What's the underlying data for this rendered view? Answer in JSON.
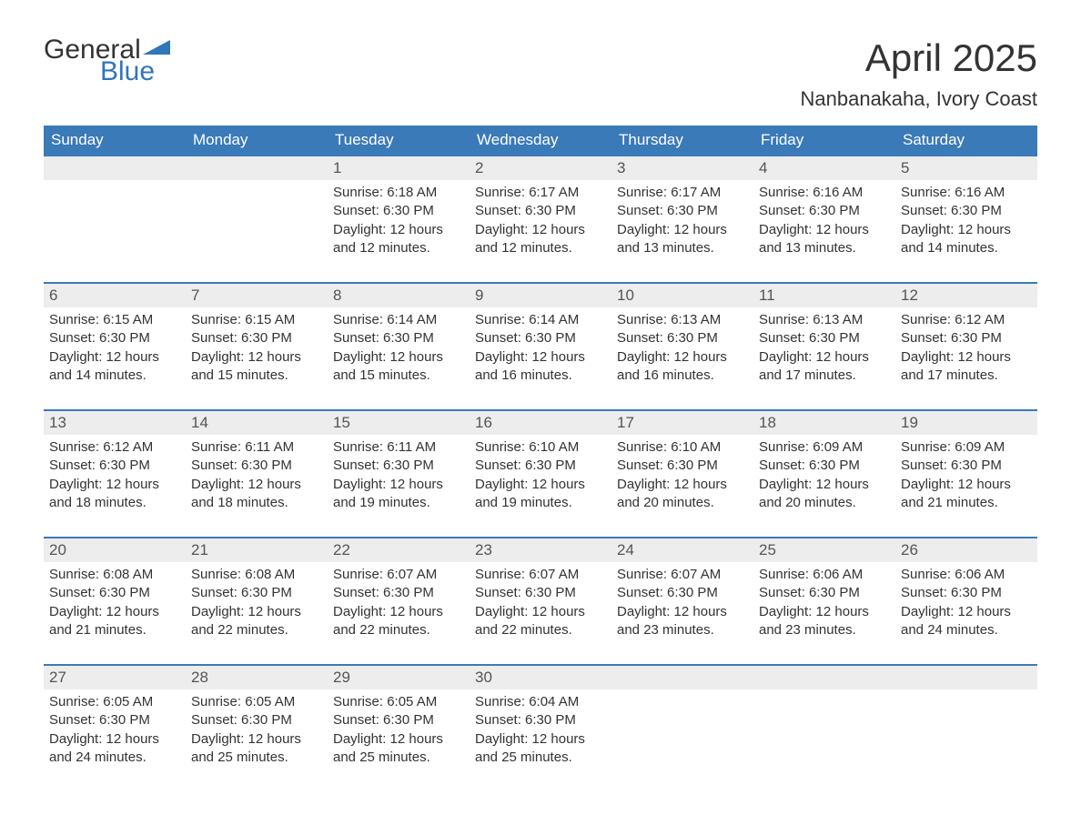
{
  "logo": {
    "text_general": "General",
    "text_blue": "Blue"
  },
  "title": "April 2025",
  "location": "Nanbanakaha, Ivory Coast",
  "colors": {
    "accent": "#3a7ab8",
    "header_bg": "#3a7ab8",
    "header_text": "#ffffff",
    "daynum_bg": "#ededed",
    "text": "#333333",
    "logo_blue": "#2f76ba",
    "background": "#ffffff"
  },
  "weekdays": [
    "Sunday",
    "Monday",
    "Tuesday",
    "Wednesday",
    "Thursday",
    "Friday",
    "Saturday"
  ],
  "weeks": [
    [
      null,
      null,
      {
        "d": "1",
        "sr": "Sunrise: 6:18 AM",
        "ss": "Sunset: 6:30 PM",
        "dl1": "Daylight: 12 hours",
        "dl2": "and 12 minutes."
      },
      {
        "d": "2",
        "sr": "Sunrise: 6:17 AM",
        "ss": "Sunset: 6:30 PM",
        "dl1": "Daylight: 12 hours",
        "dl2": "and 12 minutes."
      },
      {
        "d": "3",
        "sr": "Sunrise: 6:17 AM",
        "ss": "Sunset: 6:30 PM",
        "dl1": "Daylight: 12 hours",
        "dl2": "and 13 minutes."
      },
      {
        "d": "4",
        "sr": "Sunrise: 6:16 AM",
        "ss": "Sunset: 6:30 PM",
        "dl1": "Daylight: 12 hours",
        "dl2": "and 13 minutes."
      },
      {
        "d": "5",
        "sr": "Sunrise: 6:16 AM",
        "ss": "Sunset: 6:30 PM",
        "dl1": "Daylight: 12 hours",
        "dl2": "and 14 minutes."
      }
    ],
    [
      {
        "d": "6",
        "sr": "Sunrise: 6:15 AM",
        "ss": "Sunset: 6:30 PM",
        "dl1": "Daylight: 12 hours",
        "dl2": "and 14 minutes."
      },
      {
        "d": "7",
        "sr": "Sunrise: 6:15 AM",
        "ss": "Sunset: 6:30 PM",
        "dl1": "Daylight: 12 hours",
        "dl2": "and 15 minutes."
      },
      {
        "d": "8",
        "sr": "Sunrise: 6:14 AM",
        "ss": "Sunset: 6:30 PM",
        "dl1": "Daylight: 12 hours",
        "dl2": "and 15 minutes."
      },
      {
        "d": "9",
        "sr": "Sunrise: 6:14 AM",
        "ss": "Sunset: 6:30 PM",
        "dl1": "Daylight: 12 hours",
        "dl2": "and 16 minutes."
      },
      {
        "d": "10",
        "sr": "Sunrise: 6:13 AM",
        "ss": "Sunset: 6:30 PM",
        "dl1": "Daylight: 12 hours",
        "dl2": "and 16 minutes."
      },
      {
        "d": "11",
        "sr": "Sunrise: 6:13 AM",
        "ss": "Sunset: 6:30 PM",
        "dl1": "Daylight: 12 hours",
        "dl2": "and 17 minutes."
      },
      {
        "d": "12",
        "sr": "Sunrise: 6:12 AM",
        "ss": "Sunset: 6:30 PM",
        "dl1": "Daylight: 12 hours",
        "dl2": "and 17 minutes."
      }
    ],
    [
      {
        "d": "13",
        "sr": "Sunrise: 6:12 AM",
        "ss": "Sunset: 6:30 PM",
        "dl1": "Daylight: 12 hours",
        "dl2": "and 18 minutes."
      },
      {
        "d": "14",
        "sr": "Sunrise: 6:11 AM",
        "ss": "Sunset: 6:30 PM",
        "dl1": "Daylight: 12 hours",
        "dl2": "and 18 minutes."
      },
      {
        "d": "15",
        "sr": "Sunrise: 6:11 AM",
        "ss": "Sunset: 6:30 PM",
        "dl1": "Daylight: 12 hours",
        "dl2": "and 19 minutes."
      },
      {
        "d": "16",
        "sr": "Sunrise: 6:10 AM",
        "ss": "Sunset: 6:30 PM",
        "dl1": "Daylight: 12 hours",
        "dl2": "and 19 minutes."
      },
      {
        "d": "17",
        "sr": "Sunrise: 6:10 AM",
        "ss": "Sunset: 6:30 PM",
        "dl1": "Daylight: 12 hours",
        "dl2": "and 20 minutes."
      },
      {
        "d": "18",
        "sr": "Sunrise: 6:09 AM",
        "ss": "Sunset: 6:30 PM",
        "dl1": "Daylight: 12 hours",
        "dl2": "and 20 minutes."
      },
      {
        "d": "19",
        "sr": "Sunrise: 6:09 AM",
        "ss": "Sunset: 6:30 PM",
        "dl1": "Daylight: 12 hours",
        "dl2": "and 21 minutes."
      }
    ],
    [
      {
        "d": "20",
        "sr": "Sunrise: 6:08 AM",
        "ss": "Sunset: 6:30 PM",
        "dl1": "Daylight: 12 hours",
        "dl2": "and 21 minutes."
      },
      {
        "d": "21",
        "sr": "Sunrise: 6:08 AM",
        "ss": "Sunset: 6:30 PM",
        "dl1": "Daylight: 12 hours",
        "dl2": "and 22 minutes."
      },
      {
        "d": "22",
        "sr": "Sunrise: 6:07 AM",
        "ss": "Sunset: 6:30 PM",
        "dl1": "Daylight: 12 hours",
        "dl2": "and 22 minutes."
      },
      {
        "d": "23",
        "sr": "Sunrise: 6:07 AM",
        "ss": "Sunset: 6:30 PM",
        "dl1": "Daylight: 12 hours",
        "dl2": "and 22 minutes."
      },
      {
        "d": "24",
        "sr": "Sunrise: 6:07 AM",
        "ss": "Sunset: 6:30 PM",
        "dl1": "Daylight: 12 hours",
        "dl2": "and 23 minutes."
      },
      {
        "d": "25",
        "sr": "Sunrise: 6:06 AM",
        "ss": "Sunset: 6:30 PM",
        "dl1": "Daylight: 12 hours",
        "dl2": "and 23 minutes."
      },
      {
        "d": "26",
        "sr": "Sunrise: 6:06 AM",
        "ss": "Sunset: 6:30 PM",
        "dl1": "Daylight: 12 hours",
        "dl2": "and 24 minutes."
      }
    ],
    [
      {
        "d": "27",
        "sr": "Sunrise: 6:05 AM",
        "ss": "Sunset: 6:30 PM",
        "dl1": "Daylight: 12 hours",
        "dl2": "and 24 minutes."
      },
      {
        "d": "28",
        "sr": "Sunrise: 6:05 AM",
        "ss": "Sunset: 6:30 PM",
        "dl1": "Daylight: 12 hours",
        "dl2": "and 25 minutes."
      },
      {
        "d": "29",
        "sr": "Sunrise: 6:05 AM",
        "ss": "Sunset: 6:30 PM",
        "dl1": "Daylight: 12 hours",
        "dl2": "and 25 minutes."
      },
      {
        "d": "30",
        "sr": "Sunrise: 6:04 AM",
        "ss": "Sunset: 6:30 PM",
        "dl1": "Daylight: 12 hours",
        "dl2": "and 25 minutes."
      },
      null,
      null,
      null
    ]
  ]
}
